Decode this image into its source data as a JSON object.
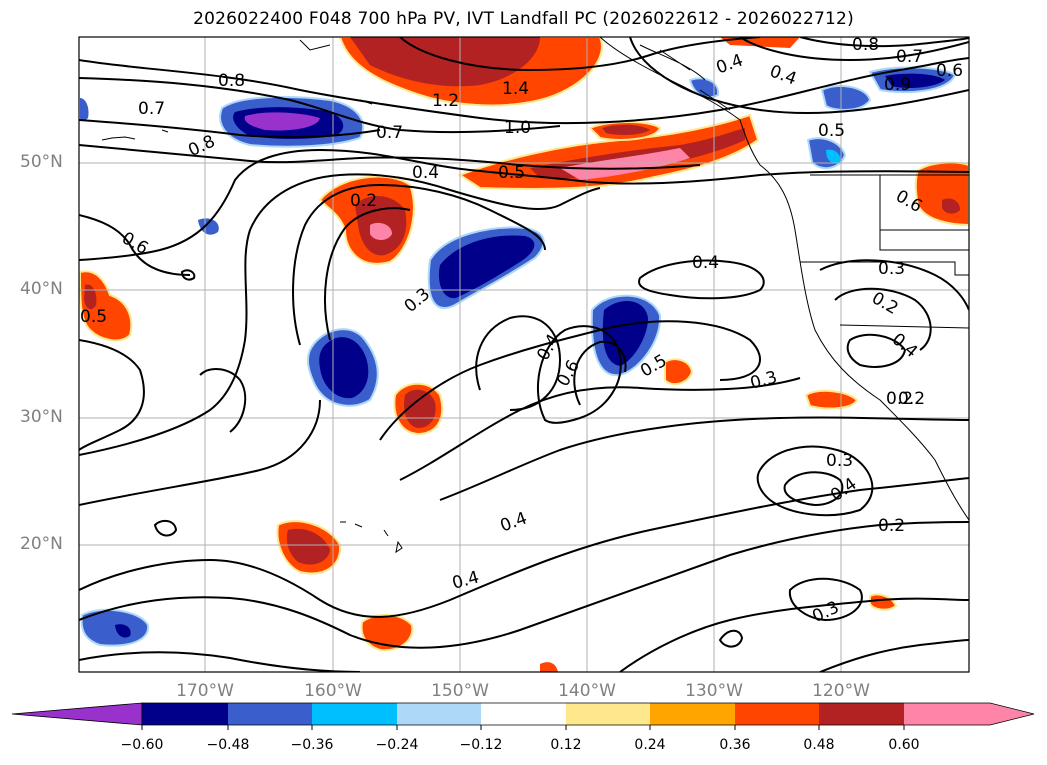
{
  "title": "2026022400 F048 700 hPa PV, IVT Landfall PC (2026022612 - 2026022712)",
  "map": {
    "lat_labels": [
      {
        "text": "50°N",
        "lat": 50
      },
      {
        "text": "40°N",
        "lat": 40
      },
      {
        "text": "30°N",
        "lat": 30
      },
      {
        "text": "20°N",
        "lat": 20
      }
    ],
    "lon_labels": [
      {
        "text": "170°W",
        "lon": -170
      },
      {
        "text": "160°W",
        "lon": -160
      },
      {
        "text": "150°W",
        "lon": -150
      },
      {
        "text": "140°W",
        "lon": -140
      },
      {
        "text": "130°W",
        "lon": -130
      },
      {
        "text": "120°W",
        "lon": -120
      }
    ],
    "extent": {
      "lon_min": -180,
      "lon_max": -110,
      "lat_min": 10,
      "lat_max": 60
    },
    "contour_labels": [
      "0.8",
      "0.7",
      "0.8",
      "1.2",
      "1.4",
      "0.7",
      "1.0",
      "0.4",
      "0.5",
      "0.4",
      "0.2",
      "0.6",
      "0.3",
      "0.4",
      "0.6",
      "0.5",
      "0.4",
      "0.3",
      "0.3",
      "0.2",
      "0.4",
      "0.2",
      "0.3",
      "0.4",
      "0.2",
      "0.4",
      "0.2",
      "0.3",
      "0.8",
      "0.7",
      "0.6",
      "0.4",
      "0.4",
      "0.5",
      "0.9",
      "0.6",
      "0.5"
    ]
  },
  "colorbar": {
    "colors": [
      "#9932cc",
      "#00008b",
      "#3a5fcd",
      "#00bfff",
      "#add8f8",
      "#ffffff",
      "#ffe88c",
      "#ffa500",
      "#ff4500",
      "#b22222",
      "#ff85a8"
    ],
    "tick_labels": [
      "−0.60",
      "−0.48",
      "−0.36",
      "−0.24",
      "−0.12",
      "0.12",
      "0.24",
      "0.36",
      "0.48",
      "0.60"
    ]
  }
}
